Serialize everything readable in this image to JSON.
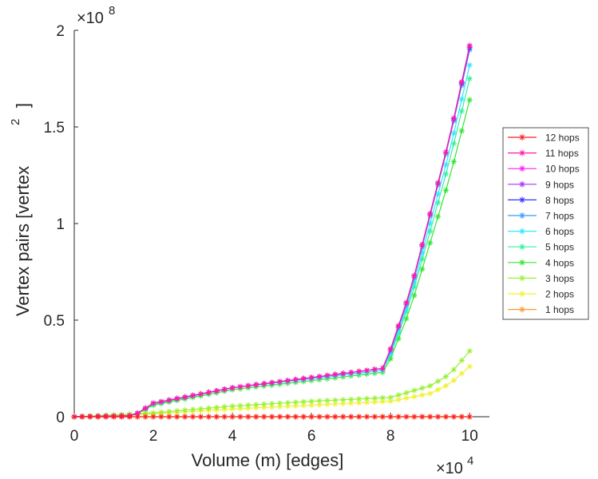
{
  "chart_data": {
    "type": "line",
    "xlabel": "Volume (m) [edges]",
    "ylabel": "Vertex pairs [vertex",
    "ylabel_exponent": "2",
    "ylabel_close": "]",
    "x_multiplier": {
      "base": "×10",
      "exponent": "4"
    },
    "y_multiplier": {
      "base": "×10",
      "exponent": "8"
    },
    "xlim": [
      0,
      10.5
    ],
    "ylim": [
      0,
      2
    ],
    "xticks": [
      0,
      2,
      4,
      6,
      8,
      10
    ],
    "xtick_labels": [
      "0",
      "2",
      "4",
      "6",
      "8",
      "10"
    ],
    "yticks": [
      0,
      0.5,
      1,
      1.5,
      2
    ],
    "ytick_labels": [
      "0",
      "0.5",
      "1",
      "1.5",
      "2"
    ],
    "legend_position": "right, outside",
    "marker": "asterisk",
    "series": [
      {
        "name": "12 hops",
        "color": "#ff1a1a",
        "x": [
          0,
          2,
          4,
          6,
          8,
          10
        ],
        "y": [
          0,
          0,
          0,
          0,
          0,
          0
        ]
      },
      {
        "name": "11 hops",
        "color": "#ff1aa6",
        "x": [
          0,
          1.5,
          2,
          4,
          7.8,
          8,
          8.5,
          9,
          9.5,
          10
        ],
        "y": [
          0,
          0.005,
          0.07,
          0.15,
          0.25,
          0.35,
          0.65,
          1.05,
          1.45,
          1.92
        ]
      },
      {
        "name": "10 hops",
        "color": "#ff1aff",
        "x": [
          0,
          1.5,
          2,
          4,
          7.8,
          8,
          8.5,
          9,
          9.5,
          10
        ],
        "y": [
          0,
          0.005,
          0.07,
          0.15,
          0.25,
          0.35,
          0.65,
          1.05,
          1.45,
          1.92
        ]
      },
      {
        "name": "9 hops",
        "color": "#a633ff",
        "x": [
          0,
          1.5,
          2,
          4,
          7.8,
          8,
          8.5,
          9,
          9.5,
          10
        ],
        "y": [
          0,
          0.005,
          0.07,
          0.15,
          0.25,
          0.35,
          0.65,
          1.05,
          1.45,
          1.92
        ]
      },
      {
        "name": "8 hops",
        "color": "#3333ff",
        "x": [
          0,
          1.5,
          2,
          4,
          7.8,
          8,
          8.5,
          9,
          9.5,
          10
        ],
        "y": [
          0,
          0.005,
          0.07,
          0.15,
          0.25,
          0.35,
          0.65,
          1.05,
          1.45,
          1.91
        ]
      },
      {
        "name": "7 hops",
        "color": "#3399ff",
        "x": [
          0,
          1.5,
          2,
          4,
          7.8,
          8,
          8.5,
          9,
          9.5,
          10
        ],
        "y": [
          0,
          0.005,
          0.07,
          0.15,
          0.25,
          0.34,
          0.64,
          1.04,
          1.44,
          1.9
        ]
      },
      {
        "name": "6 hops",
        "color": "#33e6ff",
        "x": [
          0,
          1.5,
          2,
          4,
          7.8,
          8,
          8.5,
          9,
          9.5,
          10
        ],
        "y": [
          0,
          0.005,
          0.07,
          0.15,
          0.24,
          0.33,
          0.62,
          1.0,
          1.38,
          1.82
        ]
      },
      {
        "name": "5 hops",
        "color": "#33f0a0",
        "x": [
          0,
          1.5,
          2,
          4,
          7.8,
          8,
          8.5,
          9,
          9.5,
          10
        ],
        "y": [
          0,
          0.005,
          0.065,
          0.15,
          0.24,
          0.32,
          0.6,
          0.96,
          1.33,
          1.75
        ]
      },
      {
        "name": "4 hops",
        "color": "#33e633",
        "x": [
          0,
          1.5,
          2,
          4,
          7.8,
          8,
          8.5,
          9,
          9.5,
          10
        ],
        "y": [
          0,
          0.005,
          0.06,
          0.14,
          0.23,
          0.3,
          0.56,
          0.9,
          1.24,
          1.64
        ]
      },
      {
        "name": "3 hops",
        "color": "#99f033",
        "x": [
          0,
          2,
          4,
          6,
          8,
          9,
          9.5,
          10
        ],
        "y": [
          0,
          0.02,
          0.055,
          0.08,
          0.1,
          0.16,
          0.22,
          0.34
        ]
      },
      {
        "name": "2 hops",
        "color": "#f0f033",
        "x": [
          0,
          2,
          4,
          6,
          8,
          9,
          9.5,
          10
        ],
        "y": [
          0,
          0.015,
          0.04,
          0.06,
          0.08,
          0.12,
          0.17,
          0.26
        ]
      },
      {
        "name": "1 hops",
        "color": "#ff9933",
        "x": [
          0,
          2,
          4,
          6,
          8,
          10
        ],
        "y": [
          0,
          0,
          0,
          0,
          0,
          0
        ]
      }
    ]
  }
}
